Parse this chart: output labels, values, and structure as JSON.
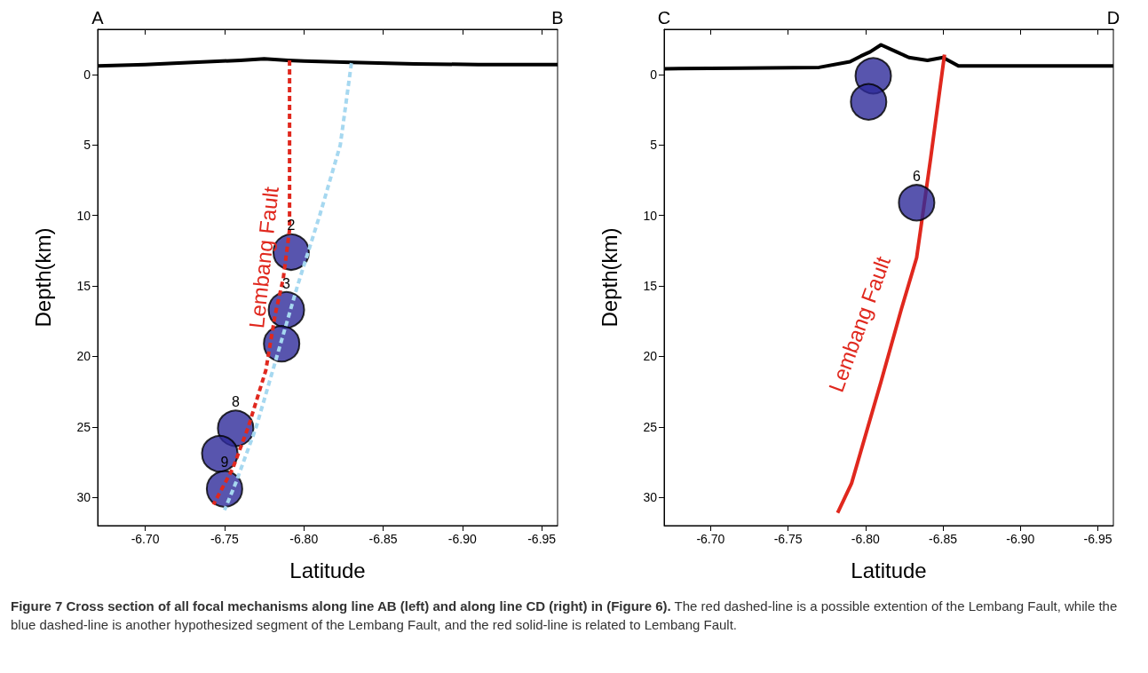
{
  "chart_data": [
    {
      "type": "line",
      "xlabel": "Latitude",
      "ylabel": "Depth(km)",
      "xlim": [
        -6.67,
        -6.96
      ],
      "xticks": [
        {
          "value": -6.7,
          "label": "-6.70"
        },
        -6.75,
        {
          "value": -6.8,
          "label": "-6.80"
        },
        -6.85,
        {
          "value": -6.9,
          "label": "-6.90"
        },
        -6.95
      ],
      "ylim": [
        32,
        -3.2
      ],
      "yticks": [
        0,
        5,
        10,
        15,
        20,
        25,
        30
      ],
      "grid": false,
      "series": [
        {
          "color": "#000000",
          "line_style": "solid",
          "marker": "none",
          "x": [
            -6.67,
            -6.7,
            -6.73,
            -6.76,
            -6.775,
            -6.79,
            -6.8,
            -6.83,
            -6.87,
            -6.91,
            -6.96
          ],
          "values": [
            -0.6,
            -0.7,
            -0.85,
            -1.0,
            -1.1,
            -1.0,
            -0.95,
            -0.85,
            -0.75,
            -0.7,
            -0.7
          ]
        },
        {
          "color": "#e0281e",
          "line_style": "dashed",
          "marker": "none",
          "x": [
            -6.791,
            -6.791,
            -6.787,
            -6.782,
            -6.776,
            -6.765,
            -6.755,
            -6.743
          ],
          "values": [
            -1.0,
            11,
            14.5,
            17,
            21,
            25,
            28,
            30.5
          ]
        },
        {
          "color": "#a6d8f0",
          "line_style": "dashed",
          "marker": "none",
          "x": [
            -6.83,
            -6.823,
            -6.81,
            -6.796,
            -6.783,
            -6.77,
            -6.757,
            -6.75
          ],
          "values": [
            -0.8,
            5,
            10,
            15,
            20,
            25,
            29,
            30.9
          ]
        },
        {
          "type": "scatter",
          "color": "#2e2a9a",
          "marker": "circle",
          "x": [
            -6.792,
            -6.789,
            -6.786,
            -6.757,
            -6.747,
            -6.75
          ],
          "values": [
            12.6,
            16.7,
            19.1,
            25.1,
            26.9,
            29.4
          ]
        }
      ],
      "annotations": [
        "A",
        "B",
        "Lembang Fault",
        "Figure 7 Cross section of all focal mechanisms along line AB (left) and along line CD (right) in (Figure 6).",
        "The red dashed-line is a possible extention of the Lembang Fault, while the blue dashed-line is another hypothesized segment of the Lembang Fault, and the red solid-line is related to Lembang Fault.",
        {
          "text": "2",
          "x": -6.792,
          "y": 12.6
        },
        {
          "text": "3",
          "x": -6.789,
          "y": 16.7
        },
        {
          "text": "8",
          "x": -6.757,
          "y": 25.1
        },
        {
          "text": "9",
          "x": -6.75,
          "y": 29.4
        }
      ]
    },
    {
      "type": "line",
      "xlabel": "Latitude",
      "ylabel": "Depth(km)",
      "xlim": [
        -6.67,
        -6.96
      ],
      "xticks": [
        {
          "value": -6.7,
          "label": "-6.70"
        },
        -6.75,
        {
          "value": -6.8,
          "label": "-6.80"
        },
        -6.85,
        {
          "value": -6.9,
          "label": "-6.90"
        },
        -6.95
      ],
      "ylim": [
        32,
        -3.2
      ],
      "yticks": [
        0,
        5,
        10,
        15,
        20,
        25,
        30
      ],
      "grid": false,
      "series": [
        {
          "color": "#000000",
          "line_style": "solid",
          "marker": "none",
          "x": [
            -6.67,
            -6.72,
            -6.77,
            -6.79,
            -6.797,
            -6.803,
            -6.81,
            -6.82,
            -6.828,
            -6.84,
            -6.85,
            -6.86,
            -6.9,
            -6.96
          ],
          "values": [
            -0.4,
            -0.45,
            -0.5,
            -0.9,
            -1.3,
            -1.6,
            -2.1,
            -1.6,
            -1.2,
            -1.0,
            -1.2,
            -0.6,
            -0.6,
            -0.6
          ]
        },
        {
          "color": "#e0281e",
          "line_style": "solid",
          "marker": "none",
          "x": [
            -6.851,
            -6.842,
            -6.833,
            -6.823,
            -6.81,
            -6.791,
            -6.782
          ],
          "values": [
            -1.4,
            6,
            13,
            16.7,
            21.8,
            29,
            31.1
          ]
        },
        {
          "type": "scatter",
          "color": "#2e2a9a",
          "marker": "circle",
          "x": [
            -6.805,
            -6.802,
            -6.833
          ],
          "values": [
            0.1,
            1.95,
            9.1
          ]
        }
      ],
      "annotations": [
        "C",
        "D",
        "Lembang Fault",
        {
          "text": "6",
          "x": -6.833,
          "y": 9.1
        }
      ]
    }
  ]
}
